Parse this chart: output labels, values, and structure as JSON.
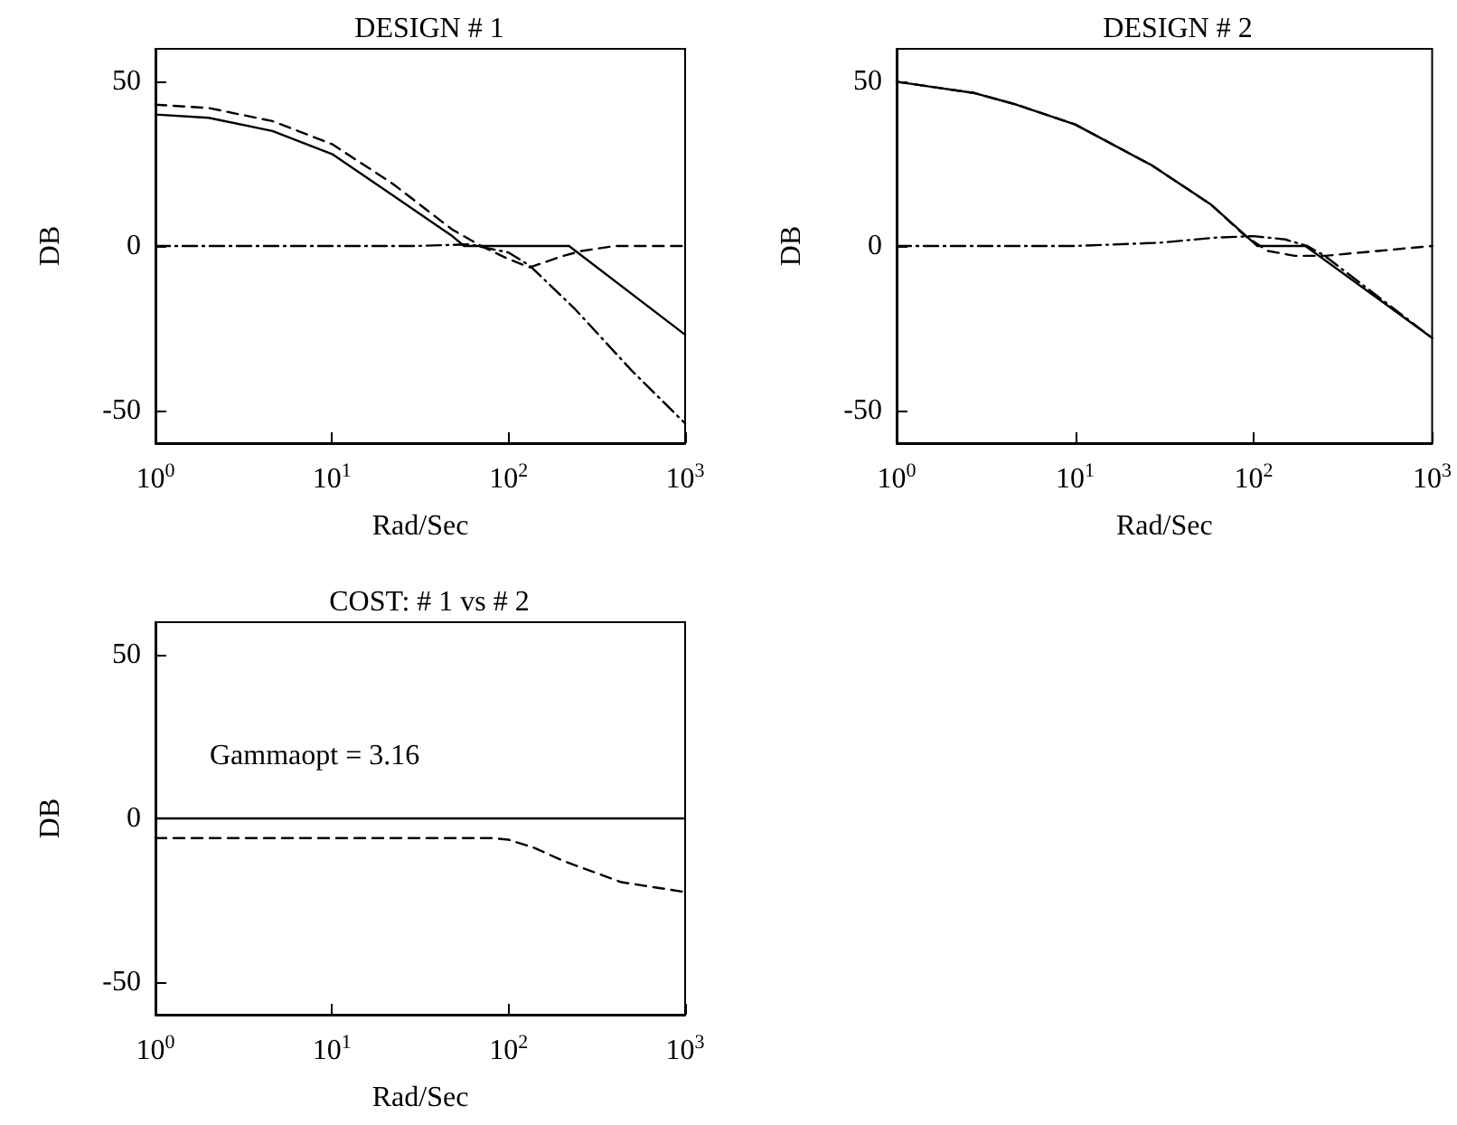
{
  "chart_data": [
    {
      "type": "line",
      "title": "DESIGN # 1",
      "xlabel": "Rad/Sec",
      "ylabel": "DB",
      "log": "x",
      "grid": false,
      "marker": "none",
      "xlim": [
        1,
        1000
      ],
      "ylim": [
        -60,
        60
      ],
      "xticks": [
        {
          "value": 1,
          "label": "10$^{0}$"
        },
        {
          "value": 10,
          "label": "10$^{1}$"
        },
        {
          "value": 100,
          "label": "10$^{2}$"
        },
        {
          "value": 1000,
          "label": "10$^{3}$"
        }
      ],
      "yticks": [
        -50,
        0,
        50
      ],
      "series": [
        {
          "color": "#000000",
          "line_style": "solid",
          "x": [
            1,
            2,
            4.6,
            10,
            22,
            48,
            56,
            220,
            1000
          ],
          "values": [
            40,
            39,
            35,
            28,
            15.5,
            3,
            0,
            0,
            -27
          ]
        },
        {
          "color": "#000000",
          "line_style": "dashed",
          "x": [
            1,
            2,
            4.6,
            10,
            22,
            48,
            70,
            100,
            132,
            204,
            260,
            400,
            1000
          ],
          "values": [
            43,
            42,
            38,
            31,
            19,
            5,
            0,
            -4,
            -6.5,
            -3,
            -1.5,
            0,
            0
          ]
        },
        {
          "color": "#000000",
          "line_style": "dashdot",
          "x": [
            1,
            30,
            60,
            100,
            132,
            236,
            500,
            1000
          ],
          "values": [
            0,
            0,
            0.5,
            -2,
            -6,
            -19,
            -38,
            -54
          ]
        }
      ]
    },
    {
      "type": "line",
      "title": "DESIGN # 2",
      "xlabel": "Rad/Sec",
      "ylabel": "DB",
      "log": "x",
      "grid": false,
      "marker": "none",
      "xlim": [
        1,
        1000
      ],
      "ylim": [
        -60,
        60
      ],
      "xticks": [
        {
          "value": 1,
          "label": "10$^{0}$"
        },
        {
          "value": 10,
          "label": "10$^{1}$"
        },
        {
          "value": 100,
          "label": "10$^{2}$"
        },
        {
          "value": 1000,
          "label": "10$^{3}$"
        }
      ],
      "yticks": [
        -50,
        0,
        50
      ],
      "series": [
        {
          "color": "#000000",
          "line_style": "solid",
          "x": [
            1,
            2.75,
            4.7,
            10,
            27,
            58,
            100,
            105,
            195,
            1000
          ],
          "values": [
            50,
            46.5,
            43,
            37,
            24.5,
            12.5,
            1,
            0,
            0,
            -28
          ]
        },
        {
          "color": "#000000",
          "line_style": "dashed",
          "x": [
            1,
            2.75,
            4.7,
            10,
            27,
            58,
            90,
            120,
            170,
            250,
            500,
            1000
          ],
          "values": [
            50,
            46.5,
            43,
            37,
            24.5,
            12.5,
            3,
            -1.5,
            -3,
            -3,
            -1.5,
            0
          ]
        },
        {
          "color": "#000000",
          "line_style": "dashdot",
          "x": [
            1,
            10,
            30,
            60,
            100,
            150,
            200,
            250,
            1000
          ],
          "values": [
            0,
            0,
            1,
            2.5,
            3,
            2,
            0,
            -3,
            -28
          ]
        }
      ]
    },
    {
      "type": "line",
      "title": "COST: # 1 vs # 2",
      "xlabel": "Rad/Sec",
      "ylabel": "DB",
      "log": "x",
      "grid": false,
      "marker": "none",
      "xlim": [
        1,
        1000
      ],
      "ylim": [
        -60,
        60
      ],
      "xticks": [
        {
          "value": 1,
          "label": "10$^{0}$"
        },
        {
          "value": 10,
          "label": "10$^{1}$"
        },
        {
          "value": 100,
          "label": "10$^{2}$"
        },
        {
          "value": 1000,
          "label": "10$^{3}$"
        }
      ],
      "yticks": [
        -50,
        0,
        50
      ],
      "annotations": [
        "Gammaopt = 3.16"
      ],
      "series": [
        {
          "color": "#000000",
          "line_style": "solid",
          "x": [
            1,
            1000
          ],
          "values": [
            0,
            0
          ]
        },
        {
          "color": "#000000",
          "line_style": "dashed",
          "x": [
            1,
            80,
            100,
            140,
            204,
            436,
            1000
          ],
          "values": [
            -6,
            -6,
            -6.5,
            -9,
            -13,
            -19.5,
            -22.5
          ]
        }
      ]
    }
  ]
}
